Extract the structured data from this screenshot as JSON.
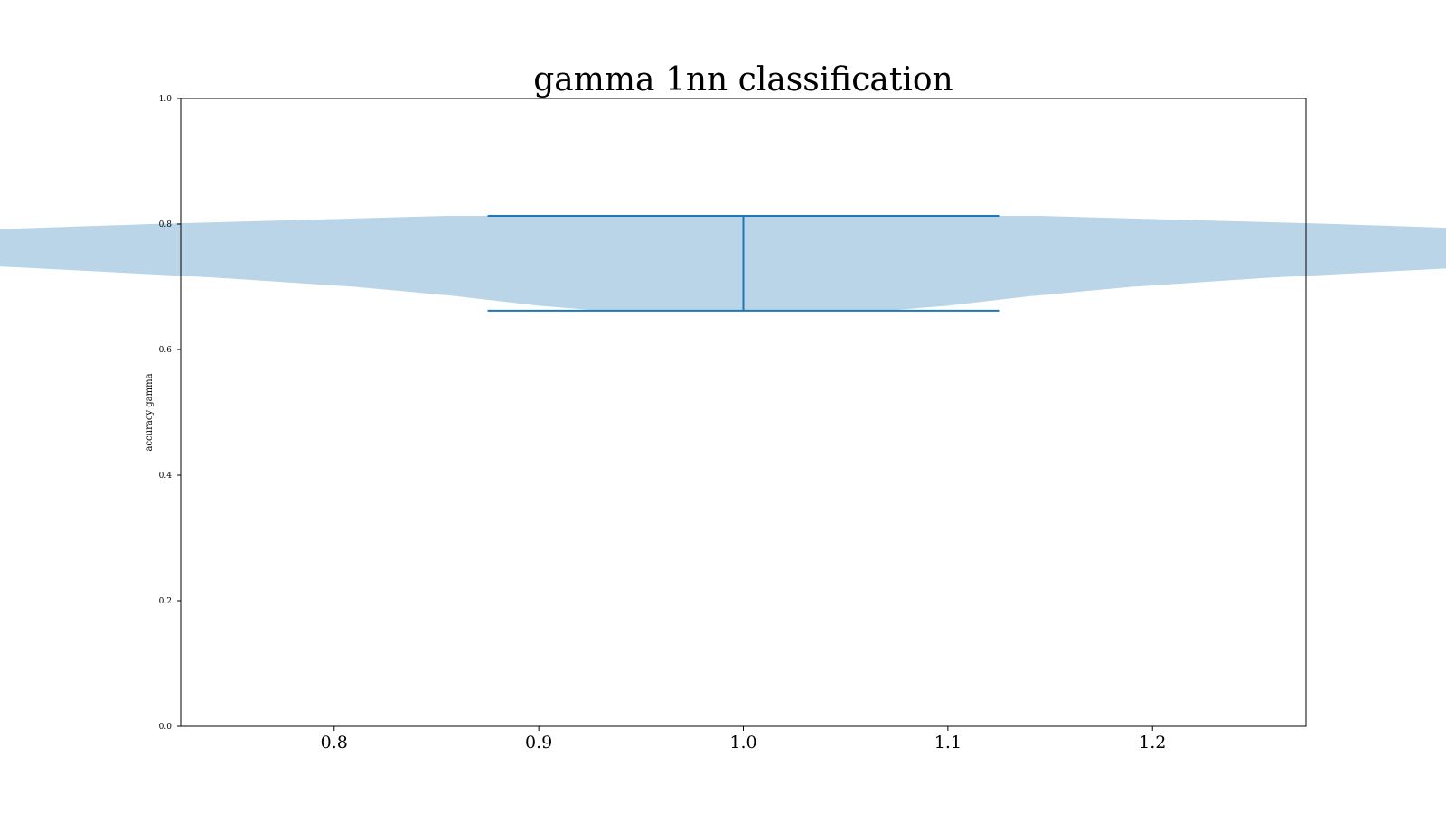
{
  "chart_data": {
    "type": "violin",
    "title": "gamma 1nn classification",
    "xlabel": "",
    "ylabel": "accuracy gamma",
    "xlim": [
      0.725,
      1.275
    ],
    "ylim": [
      0.0,
      1.0
    ],
    "xticks": [
      0.8,
      0.9,
      1.0,
      1.1,
      1.2
    ],
    "xtick_labels": [
      "0.8",
      "0.9",
      "1.0",
      "1.1",
      "1.2"
    ],
    "yticks": [
      0.0,
      0.2,
      0.4,
      0.6,
      0.8,
      1.0
    ],
    "ytick_labels": [
      "0.0",
      "0.2",
      "0.4",
      "0.6",
      "0.8",
      "1.0"
    ],
    "grid": false,
    "series": [
      {
        "position": 1.0,
        "min": 0.662,
        "max": 0.813,
        "density": [
          {
            "y": 0.662,
            "half_width": 0.07
          },
          {
            "y": 0.67,
            "half_width": 0.1
          },
          {
            "y": 0.685,
            "half_width": 0.14
          },
          {
            "y": 0.7,
            "half_width": 0.19
          },
          {
            "y": 0.715,
            "half_width": 0.26
          },
          {
            "y": 0.73,
            "half_width": 0.35
          },
          {
            "y": 0.745,
            "half_width": 0.44
          },
          {
            "y": 0.755,
            "half_width": 0.49
          },
          {
            "y": 0.762,
            "half_width": 0.5
          },
          {
            "y": 0.77,
            "half_width": 0.49
          },
          {
            "y": 0.78,
            "half_width": 0.45
          },
          {
            "y": 0.79,
            "half_width": 0.38
          },
          {
            "y": 0.8,
            "half_width": 0.29
          },
          {
            "y": 0.808,
            "half_width": 0.2
          },
          {
            "y": 0.813,
            "half_width": 0.145
          }
        ]
      }
    ],
    "colors": {
      "body": "#bbd5e8",
      "lines": "#1f77b4",
      "axes": "#000000"
    }
  }
}
